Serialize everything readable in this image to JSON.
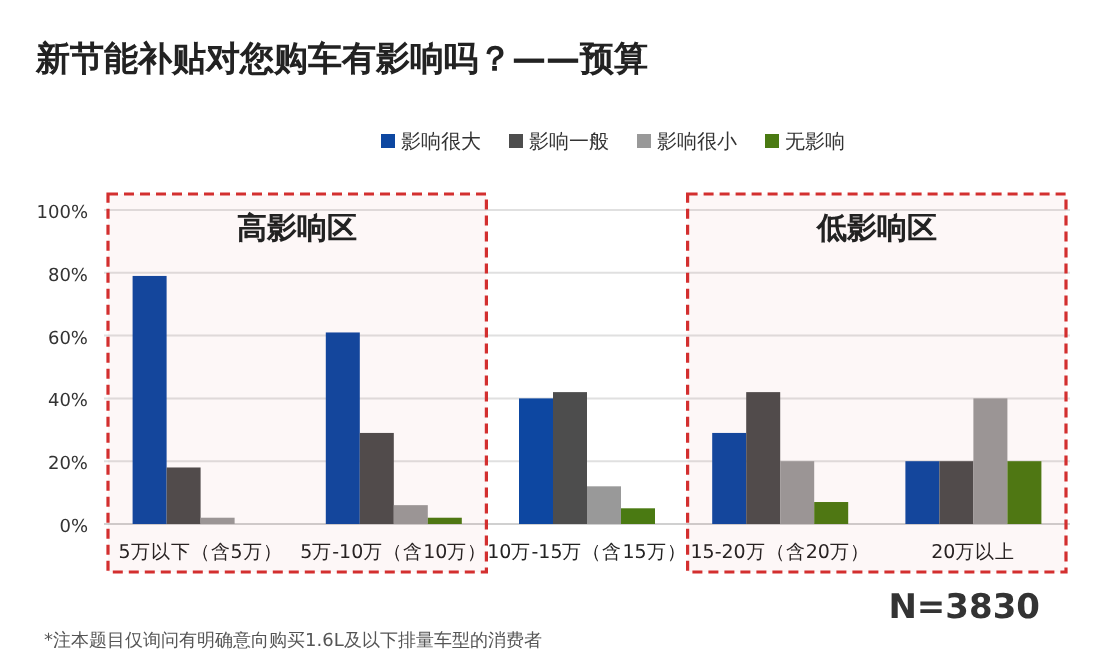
{
  "chart_data": {
    "type": "bar",
    "title": "新节能补贴对您购车有影响吗？——预算",
    "categories": [
      "5万以下（含5万）",
      "5万-10万（含10万）",
      "10万-15万（含15万）",
      "15-20万（含20万）",
      "20万以上"
    ],
    "series": [
      {
        "name": "影响很大",
        "color": "#0d47a1",
        "values": [
          79,
          61,
          40,
          29,
          20
        ]
      },
      {
        "name": "影响一般",
        "color": "#4d4d4d",
        "values": [
          18,
          29,
          42,
          42,
          20
        ]
      },
      {
        "name": "影响很小",
        "color": "#999999",
        "values": [
          2,
          6,
          12,
          20,
          40
        ]
      },
      {
        "name": "无影响",
        "color": "#4a7a12",
        "values": [
          0,
          2,
          5,
          7,
          20
        ]
      }
    ],
    "ylim": [
      0,
      100
    ],
    "yticks": [
      {
        "value": 0,
        "label": "0%"
      },
      {
        "value": 20,
        "label": "20%"
      },
      {
        "value": 40,
        "label": "40%"
      },
      {
        "value": 60,
        "label": "60%"
      },
      {
        "value": 80,
        "label": "80%"
      },
      {
        "value": 100,
        "label": "100%"
      }
    ],
    "grid": "y",
    "legend": "top",
    "bands": [
      {
        "axis": "x",
        "from": "5万以下（含5万）",
        "to": "5万-10万（含10万）",
        "label": "高影响区",
        "color": "#d32f2f"
      },
      {
        "axis": "x",
        "from": "15-20万（含20万）",
        "to": "20万以上",
        "label": "低影响区",
        "color": "#d32f2f"
      }
    ],
    "annotations": [
      "N=3830",
      "*注本题目仅询问有明确意向购买1.6L及以下排量车型的消费者"
    ]
  }
}
